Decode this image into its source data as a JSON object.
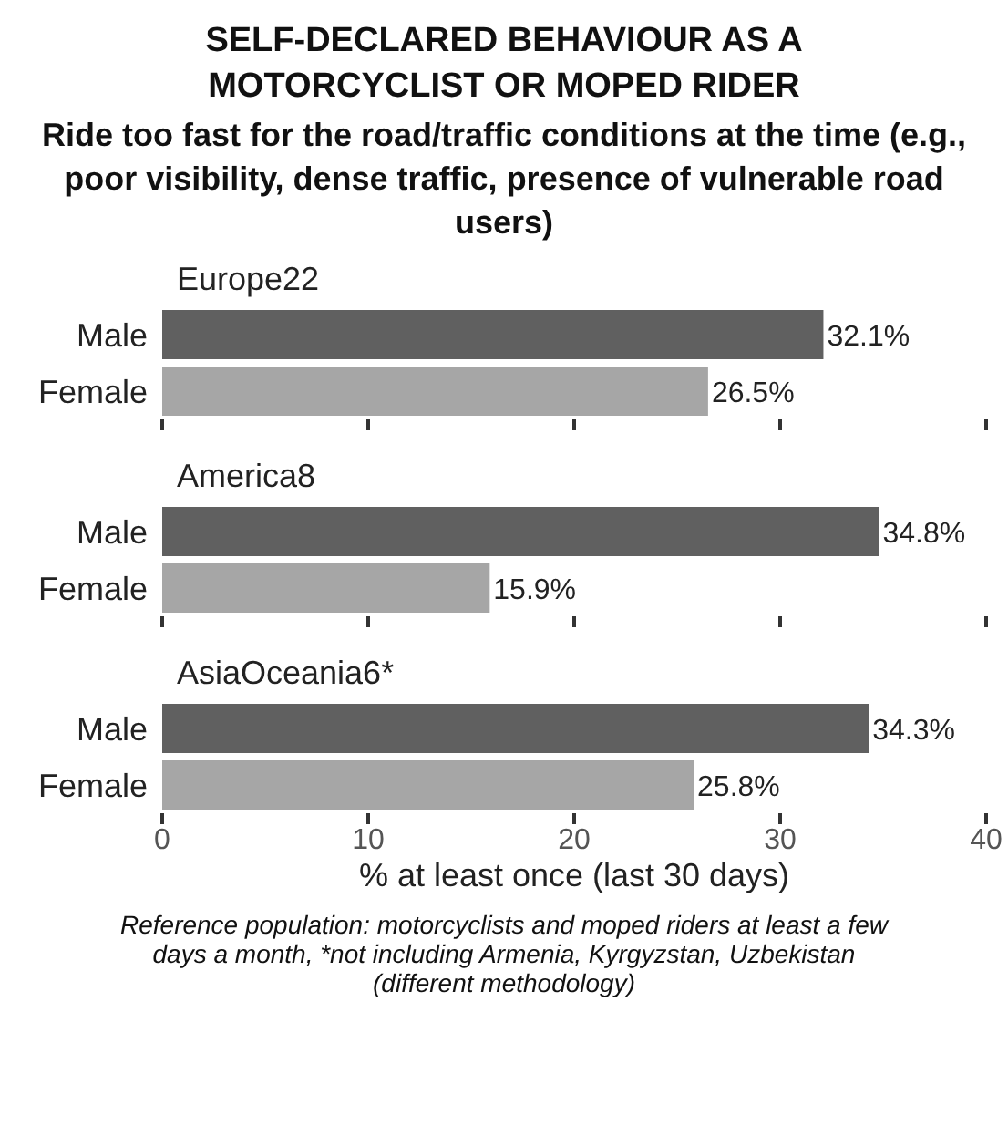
{
  "chart_data": [
    {
      "type": "other",
      "title": "SELF-DECLARED BEHAVIOUR AS A MOTORCYCLIST OR MOPED RIDER",
      "subtitle": "Ride too fast for the road/traffic conditions at the time (e.g., poor visibility, dense traffic, presence of vulnerable road users)"
    },
    {
      "type": "bar",
      "orientation": "horizontal",
      "title": "Europe22",
      "categories": [
        "Male",
        "Female"
      ],
      "values": [
        32.1,
        26.5
      ],
      "colors": [
        "#606060",
        "#a6a6a6"
      ],
      "value_labels": [
        "32.1%",
        "26.5%"
      ],
      "xlim": [
        0,
        40
      ],
      "xticks": [
        {
          "value": 0,
          "label": null
        },
        {
          "value": 10,
          "label": null
        },
        {
          "value": 20,
          "label": null
        },
        {
          "value": 30,
          "label": null
        },
        {
          "value": 40,
          "label": null
        }
      ],
      "tick_labels": "y",
      "grid": false,
      "legend": false
    },
    {
      "type": "bar",
      "orientation": "horizontal",
      "title": "America8",
      "categories": [
        "Male",
        "Female"
      ],
      "values": [
        34.8,
        15.9
      ],
      "colors": [
        "#606060",
        "#a6a6a6"
      ],
      "value_labels": [
        "34.8%",
        "15.9%"
      ],
      "xlim": [
        0,
        40
      ],
      "xticks": [
        {
          "value": 0,
          "label": null
        },
        {
          "value": 10,
          "label": null
        },
        {
          "value": 20,
          "label": null
        },
        {
          "value": 30,
          "label": null
        },
        {
          "value": 40,
          "label": null
        }
      ],
      "tick_labels": "y",
      "grid": false,
      "legend": false
    },
    {
      "type": "bar",
      "orientation": "horizontal",
      "title": "AsiaOceania6*",
      "categories": [
        "Male",
        "Female"
      ],
      "values": [
        34.3,
        25.8
      ],
      "colors": [
        "#606060",
        "#a6a6a6"
      ],
      "value_labels": [
        "34.3%",
        "25.8%"
      ],
      "xlim": [
        0,
        40
      ],
      "xticks": [
        0,
        10,
        20,
        30,
        40
      ],
      "xlabel": "% at least once (last 30 days)",
      "annotations": [
        "Reference population: motorcyclists and moped riders at least a few days a month, *not including Armenia, Kyrgyzstan, Uzbekistan (different methodology)"
      ],
      "grid": false,
      "legend": false
    }
  ]
}
